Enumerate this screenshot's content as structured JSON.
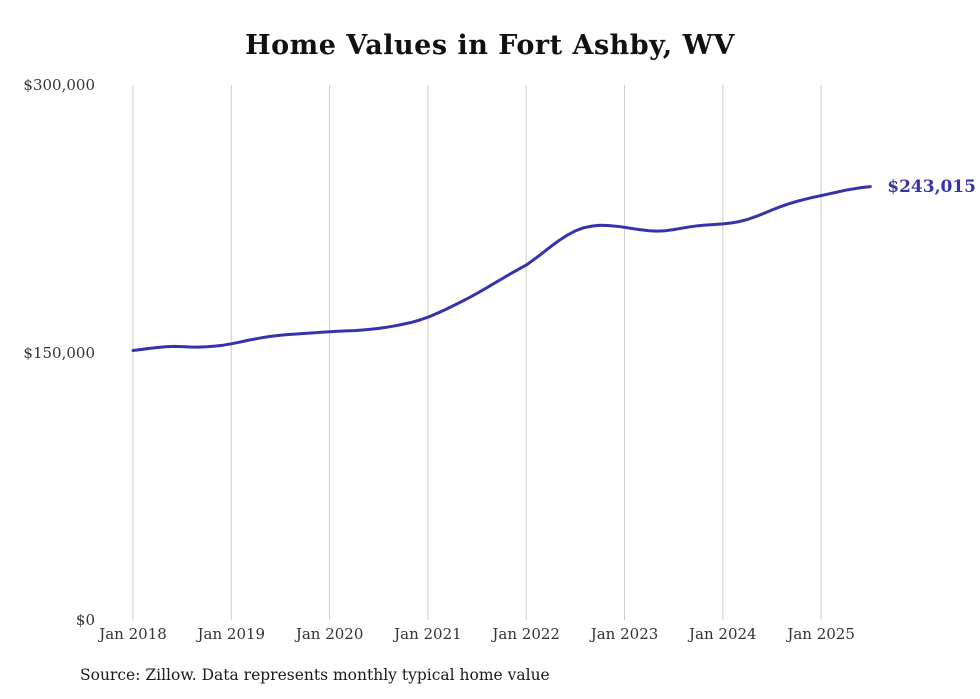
{
  "title": "Home Values in Fort Ashby, WV",
  "end_label": "$243,015",
  "source_note": "Source: Zillow. Data represents monthly typical home value",
  "colors": {
    "line": "#3533ab",
    "end_label": "#3533ab",
    "grid": "#cccccc",
    "axis_text": "#333333"
  },
  "chart_data": {
    "type": "line",
    "title": "Home Values in Fort Ashby, WV",
    "xlabel": "",
    "ylabel": "",
    "ylim": [
      0,
      300000
    ],
    "grid": "vertical-only",
    "legend": "none",
    "x_start": "2018-01",
    "x_interval": "month",
    "x_tick_labels": [
      "Jan 2018",
      "Jan 2019",
      "Jan 2020",
      "Jan 2021",
      "Jan 2022",
      "Jan 2023",
      "Jan 2024",
      "Jan 2025"
    ],
    "y_ticks": [
      {
        "value": 0,
        "label": "$0"
      },
      {
        "value": 150000,
        "label": "$150,000"
      },
      {
        "value": 300000,
        "label": "$300,000"
      }
    ],
    "final_value": 243015,
    "series": [
      {
        "name": "Typical home value",
        "values": [
          151100,
          151700,
          152300,
          152800,
          153200,
          153400,
          153300,
          153100,
          153000,
          153200,
          153600,
          154100,
          154900,
          155800,
          156800,
          157700,
          158500,
          159200,
          159700,
          160100,
          160400,
          160700,
          161000,
          161300,
          161600,
          161900,
          162100,
          162300,
          162600,
          163000,
          163500,
          164200,
          165000,
          165900,
          166900,
          168200,
          169800,
          171700,
          173800,
          176000,
          178300,
          180700,
          183200,
          185800,
          188500,
          191200,
          193900,
          196500,
          199000,
          202300,
          205800,
          209400,
          212800,
          215800,
          218200,
          219900,
          220900,
          221300,
          221200,
          220800,
          220200,
          219500,
          218800,
          218300,
          218100,
          218300,
          218900,
          219700,
          220500,
          221100,
          221500,
          221800,
          222100,
          222600,
          223400,
          224600,
          226200,
          228000,
          229900,
          231700,
          233300,
          234700,
          235900,
          237000,
          238000,
          239000,
          240000,
          241000,
          241800,
          242500,
          243015
        ]
      }
    ]
  }
}
